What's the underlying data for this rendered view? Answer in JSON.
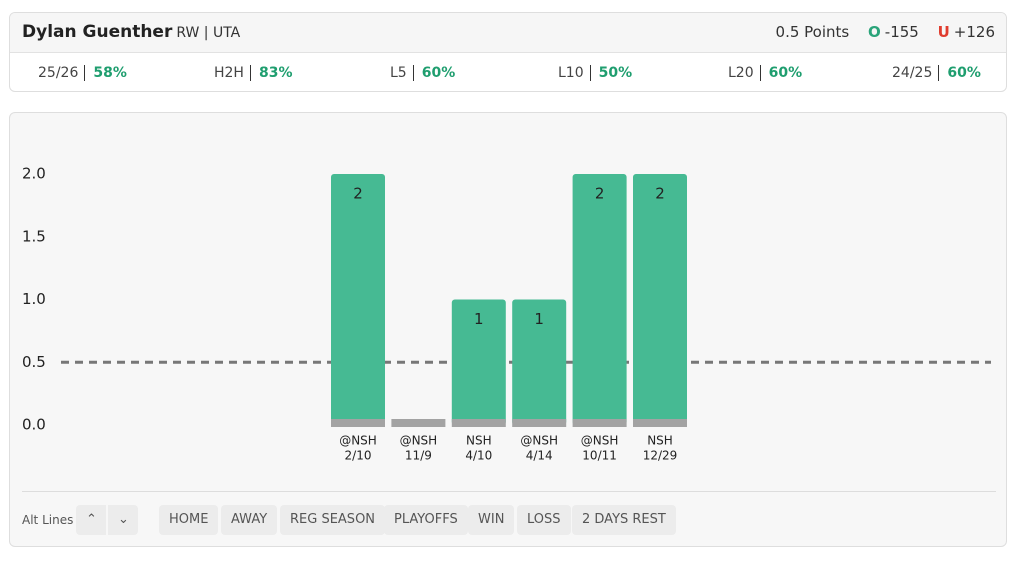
{
  "header": {
    "player": "Dylan Guenther",
    "position": "RW | UTA",
    "line": "0.5 Points",
    "over": {
      "label": "O",
      "odds": "-155"
    },
    "under": {
      "label": "U",
      "odds": "+126"
    }
  },
  "stats": [
    {
      "label": "25/26",
      "value": "58%"
    },
    {
      "label": "H2H",
      "value": "83%"
    },
    {
      "label": "L5",
      "value": "60%"
    },
    {
      "label": "L10",
      "value": "50%"
    },
    {
      "label": "L20",
      "value": "60%"
    },
    {
      "label": "24/25",
      "value": "60%"
    }
  ],
  "chart_data": {
    "type": "bar",
    "categories": [
      "@NSH",
      "@NSH",
      "NSH",
      "@NSH",
      "@NSH",
      "NSH"
    ],
    "dates": [
      "2/10",
      "11/9",
      "4/10",
      "4/14",
      "10/11",
      "12/29"
    ],
    "values": [
      2,
      0,
      1,
      1,
      2,
      2
    ],
    "color": "#46ba93",
    "ylim": [
      0,
      2
    ],
    "yticks": [
      {
        "value": 0,
        "label": "0.0"
      },
      0.5,
      {
        "value": 1,
        "label": "1.0"
      },
      1.5,
      {
        "value": 2,
        "label": "2.0"
      }
    ],
    "threshold": 0.5
  },
  "controls": {
    "alt_lines": "Alt Lines",
    "filters": [
      "HOME",
      "AWAY",
      "REG SEASON",
      "PLAYOFFS",
      "WIN",
      "LOSS",
      "2 DAYS REST"
    ]
  }
}
